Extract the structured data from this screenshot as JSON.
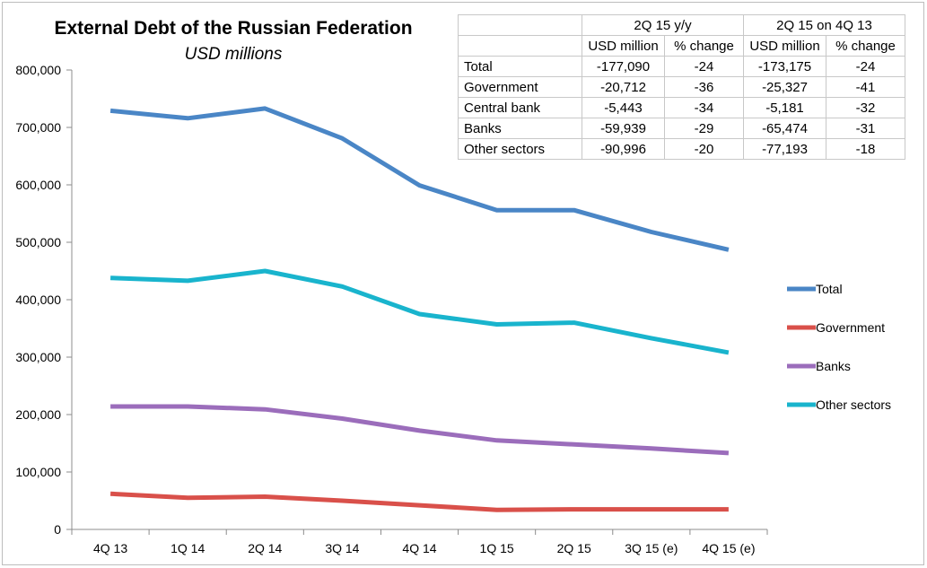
{
  "chart_title": "External Debt of the Russian Federation",
  "chart_subtitle": "USD millions",
  "table": {
    "group_headers": [
      "2Q 15 y/y",
      "2Q 15 on 4Q 13"
    ],
    "sub_headers": [
      "USD million",
      "% change",
      "USD million",
      "% change"
    ],
    "rows": [
      {
        "label": "Total",
        "values": [
          "-177,090",
          "-24",
          "-173,175",
          "-24"
        ]
      },
      {
        "label": "Government",
        "values": [
          "-20,712",
          "-36",
          "-25,327",
          "-41"
        ]
      },
      {
        "label": "Central bank",
        "values": [
          "-5,443",
          "-34",
          "-5,181",
          "-32"
        ]
      },
      {
        "label": "Banks",
        "values": [
          "-59,939",
          "-29",
          "-65,474",
          "-31"
        ]
      },
      {
        "label": "Other sectors",
        "values": [
          "-90,996",
          "-20",
          "-77,193",
          "-18"
        ]
      }
    ]
  },
  "chart_data": {
    "type": "line",
    "title": "External Debt of the Russian Federation",
    "subtitle": "USD millions",
    "xlabel": "",
    "ylabel": "",
    "categories": [
      "4Q 13",
      "1Q 14",
      "2Q 14",
      "3Q 14",
      "4Q 14",
      "1Q 15",
      "2Q 15",
      "3Q 15 (e)",
      "4Q 15 (e)"
    ],
    "ylim": [
      0,
      800000
    ],
    "yticks": [
      0,
      100000,
      200000,
      300000,
      400000,
      500000,
      600000,
      700000,
      800000
    ],
    "ytick_labels": [
      "0",
      "100,000",
      "200,000",
      "300,000",
      "400,000",
      "500,000",
      "600,000",
      "700,000",
      "800,000"
    ],
    "grid": false,
    "legend_position": "right",
    "series": [
      {
        "name": "Total",
        "color": "#4a86c6",
        "values": [
          729000,
          716000,
          733000,
          681000,
          599000,
          556000,
          556000,
          518000,
          487000
        ]
      },
      {
        "name": "Government",
        "color": "#d9504a",
        "values": [
          62000,
          55000,
          57000,
          50000,
          42000,
          34000,
          35000,
          35000,
          35000
        ]
      },
      {
        "name": "Banks",
        "color": "#9b6dbb",
        "values": [
          214000,
          214000,
          209000,
          193000,
          172000,
          155000,
          148000,
          141000,
          133000
        ]
      },
      {
        "name": "Other sectors",
        "color": "#19b4cd",
        "values": [
          438000,
          433000,
          450000,
          423000,
          375000,
          357000,
          360000,
          333000,
          308000
        ]
      }
    ]
  }
}
